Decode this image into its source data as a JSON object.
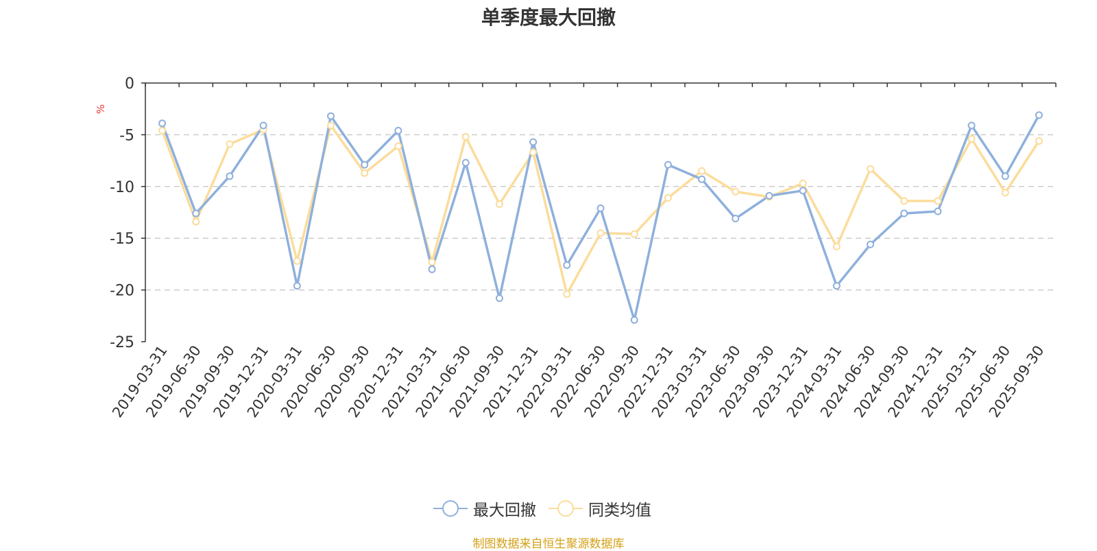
{
  "chart_data": {
    "type": "line",
    "title": "单季度最大回撤",
    "ylabel": "%",
    "ylim": [
      -25,
      0
    ],
    "yticks": [
      0,
      -5,
      -10,
      -15,
      -20,
      -25
    ],
    "grid": true,
    "legend_position": "bottom",
    "categories": [
      "2019-03-31",
      "2019-06-30",
      "2019-09-30",
      "2019-12-31",
      "2020-03-31",
      "2020-06-30",
      "2020-09-30",
      "2020-12-31",
      "2021-03-31",
      "2021-06-30",
      "2021-09-30",
      "2021-12-31",
      "2022-03-31",
      "2022-06-30",
      "2022-09-30",
      "2022-12-31",
      "2023-03-31",
      "2023-06-30",
      "2023-09-30",
      "2023-12-31",
      "2024-03-31",
      "2024-06-30",
      "2024-09-30",
      "2024-12-31",
      "2025-03-31",
      "2025-06-30",
      "2025-09-30"
    ],
    "series": [
      {
        "name": "最大回撤",
        "color": "#8eb0dc",
        "values": [
          -3.9,
          -12.6,
          -9.0,
          -4.1,
          -19.6,
          -3.2,
          -7.9,
          -4.6,
          -18.0,
          -7.7,
          -20.8,
          -5.7,
          -17.6,
          -12.1,
          -22.9,
          -7.9,
          -9.3,
          -13.1,
          -10.9,
          -10.4,
          -19.6,
          -15.6,
          -12.6,
          -12.4,
          -4.1,
          -9.0,
          -3.1
        ]
      },
      {
        "name": "同类均值",
        "color": "#fbdc9b",
        "values": [
          -4.6,
          -13.4,
          -5.9,
          -4.5,
          -17.2,
          -4.1,
          -8.7,
          -6.1,
          -17.3,
          -5.2,
          -11.7,
          -6.7,
          -20.4,
          -14.5,
          -14.6,
          -11.1,
          -8.5,
          -10.5,
          -11.0,
          -9.7,
          -15.8,
          -8.3,
          -11.4,
          -11.4,
          -5.4,
          -10.6,
          -5.6
        ]
      }
    ]
  },
  "source": {
    "text": "制图数据来自恒生聚源数据库",
    "color": "#d4a017"
  },
  "unit_color": "#e53935"
}
